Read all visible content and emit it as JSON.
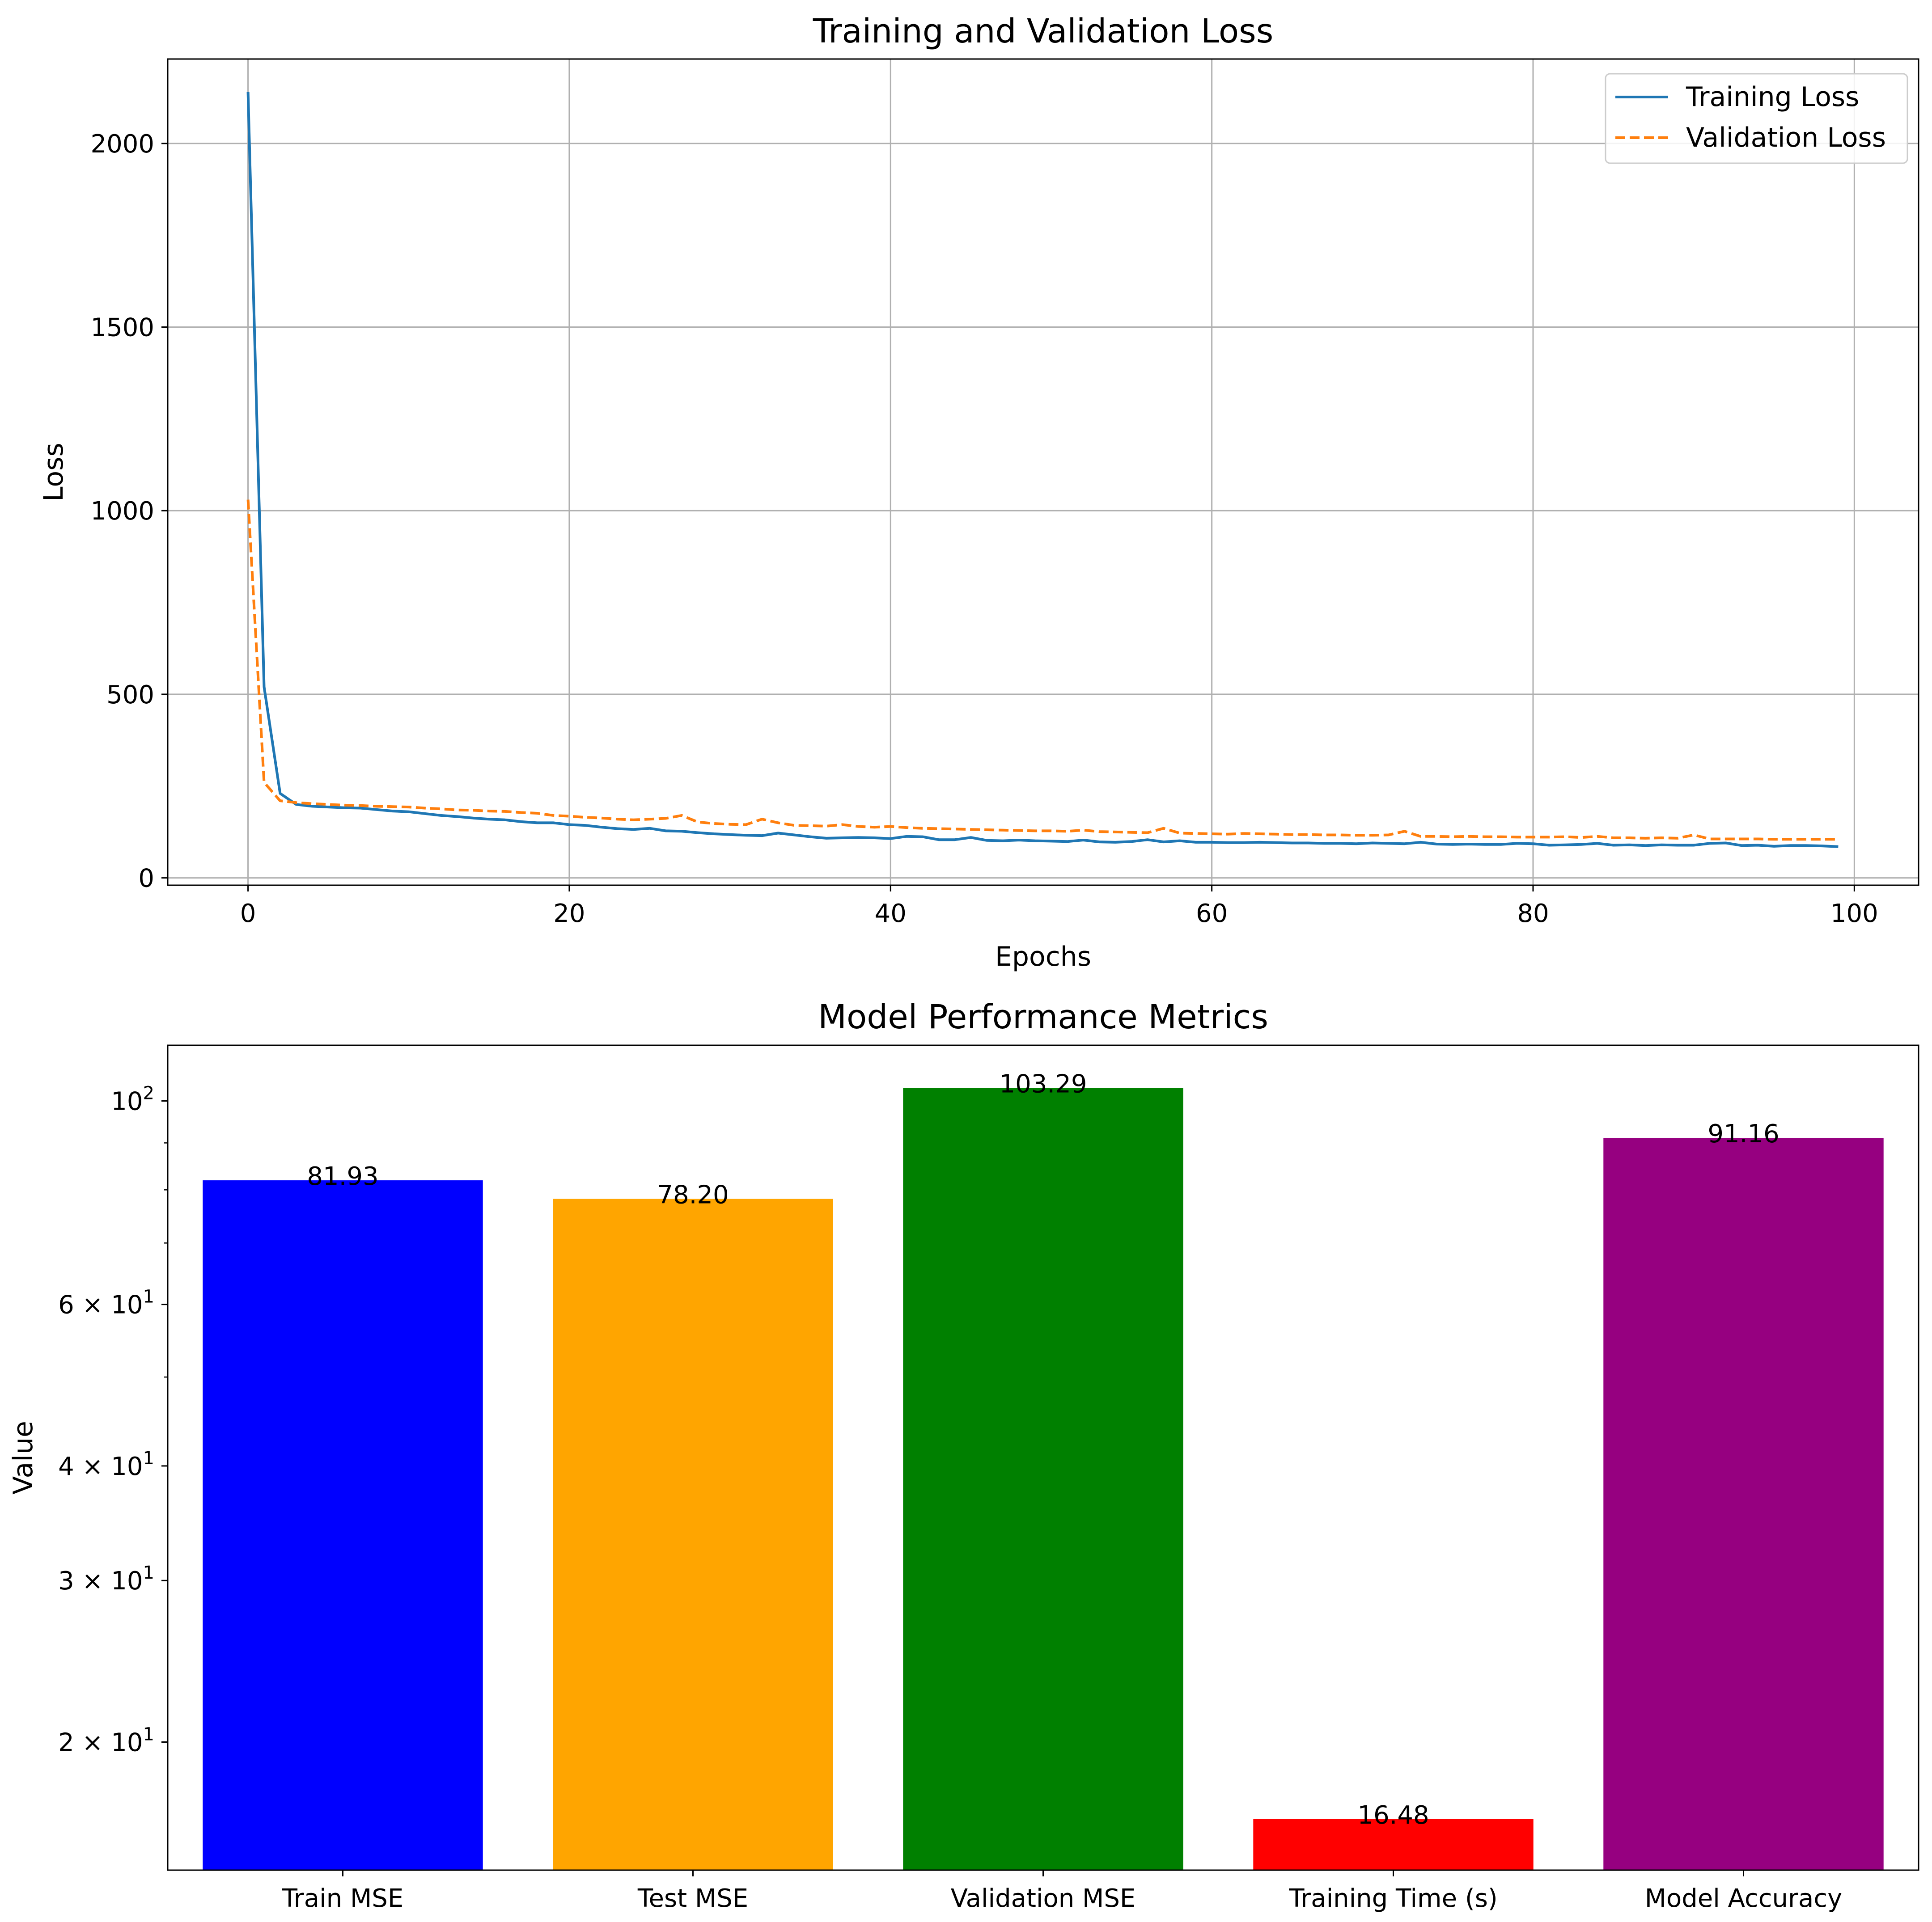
{
  "chart_data": [
    {
      "type": "line",
      "title": "Training and Validation Loss",
      "xlabel": "Epochs",
      "ylabel": "Loss",
      "xlim": [
        -5,
        104
      ],
      "ylim": [
        -20,
        2230
      ],
      "xticks": [
        0,
        20,
        40,
        60,
        80,
        100
      ],
      "yticks": [
        0,
        500,
        1000,
        1500,
        2000
      ],
      "grid": true,
      "legend_position": "top-right",
      "series": [
        {
          "name": "Training Loss",
          "color": "#1f77b4",
          "style": "solid",
          "x": [
            0,
            1,
            2,
            3,
            4,
            5,
            6,
            7,
            8,
            9,
            10,
            11,
            12,
            13,
            14,
            15,
            16,
            17,
            18,
            19,
            20,
            21,
            22,
            23,
            24,
            25,
            26,
            27,
            28,
            29,
            30,
            31,
            32,
            33,
            34,
            35,
            36,
            37,
            38,
            39,
            40,
            41,
            42,
            43,
            44,
            45,
            46,
            47,
            48,
            49,
            50,
            51,
            52,
            53,
            54,
            55,
            56,
            57,
            58,
            59,
            60,
            61,
            62,
            63,
            64,
            65,
            66,
            67,
            68,
            69,
            70,
            71,
            72,
            73,
            74,
            75,
            76,
            77,
            78,
            79,
            80,
            81,
            82,
            83,
            84,
            85,
            86,
            87,
            88,
            89,
            90,
            91,
            92,
            93,
            94,
            95,
            96,
            97,
            98,
            99
          ],
          "y": [
            2140,
            520,
            230,
            200,
            195,
            193,
            191,
            190,
            186,
            182,
            180,
            175,
            170,
            167,
            163,
            160,
            158,
            153,
            150,
            150,
            145,
            143,
            138,
            134,
            132,
            135,
            128,
            127,
            123,
            120,
            118,
            116,
            115,
            122,
            117,
            112,
            108,
            109,
            110,
            109,
            107,
            113,
            112,
            104,
            104,
            110,
            102,
            101,
            103,
            101,
            100,
            99,
            103,
            98,
            97,
            99,
            104,
            98,
            101,
            97,
            97,
            96,
            96,
            97,
            96,
            95,
            95,
            94,
            94,
            93,
            95,
            94,
            93,
            97,
            92,
            91,
            92,
            91,
            91,
            94,
            93,
            89,
            90,
            91,
            94,
            89,
            90,
            88,
            90,
            89,
            89,
            94,
            95,
            88,
            89,
            86,
            88,
            88,
            87,
            85
          ]
        },
        {
          "name": "Validation Loss",
          "color": "#ff7f0e",
          "style": "dashed",
          "x": [
            0,
            1,
            2,
            3,
            4,
            5,
            6,
            7,
            8,
            9,
            10,
            11,
            12,
            13,
            14,
            15,
            16,
            17,
            18,
            19,
            20,
            21,
            22,
            23,
            24,
            25,
            26,
            27,
            28,
            29,
            30,
            31,
            32,
            33,
            34,
            35,
            36,
            37,
            38,
            39,
            40,
            41,
            42,
            43,
            44,
            45,
            46,
            47,
            48,
            49,
            50,
            51,
            52,
            53,
            54,
            55,
            56,
            57,
            58,
            59,
            60,
            61,
            62,
            63,
            64,
            65,
            66,
            67,
            68,
            69,
            70,
            71,
            72,
            73,
            74,
            75,
            76,
            77,
            78,
            79,
            80,
            81,
            82,
            83,
            84,
            85,
            86,
            87,
            88,
            89,
            90,
            91,
            92,
            93,
            94,
            95,
            96,
            97,
            98,
            99
          ],
          "y": [
            1030,
            260,
            210,
            205,
            202,
            200,
            198,
            197,
            195,
            194,
            193,
            190,
            188,
            185,
            184,
            182,
            181,
            178,
            176,
            170,
            168,
            165,
            163,
            160,
            158,
            160,
            162,
            170,
            152,
            148,
            146,
            145,
            160,
            150,
            143,
            142,
            141,
            145,
            140,
            138,
            140,
            137,
            135,
            134,
            133,
            132,
            131,
            130,
            129,
            128,
            128,
            127,
            130,
            126,
            125,
            124,
            123,
            135,
            122,
            121,
            120,
            119,
            121,
            120,
            119,
            118,
            118,
            117,
            117,
            116,
            116,
            117,
            127,
            113,
            113,
            112,
            113,
            112,
            112,
            111,
            111,
            111,
            112,
            110,
            113,
            109,
            109,
            108,
            109,
            108,
            117,
            106,
            106,
            106,
            106,
            105,
            105,
            105,
            105,
            105
          ]
        }
      ]
    },
    {
      "type": "bar",
      "title": "Model Performance Metrics",
      "xlabel": "",
      "ylabel": "Value",
      "yscale": "log",
      "ylim": [
        14.5,
        115
      ],
      "grid": false,
      "categories": [
        "Train MSE",
        "Test MSE",
        "Validation MSE",
        "Training Time (s)",
        "Model Accuracy"
      ],
      "values": [
        81.93,
        78.2,
        103.29,
        16.48,
        91.16
      ],
      "value_labels": [
        "81.93",
        "78.20",
        "103.29",
        "16.48",
        "91.16"
      ],
      "colors": [
        "#0000ff",
        "#ffa500",
        "#008000",
        "#ff0000",
        "#960080"
      ],
      "yticks": [
        {
          "value": 100,
          "base": "10",
          "exp": "2"
        },
        {
          "value": 60,
          "base": "6 × 10",
          "exp": "1"
        },
        {
          "value": 40,
          "base": "4 × 10",
          "exp": "1"
        },
        {
          "value": 30,
          "base": "3 × 10",
          "exp": "1"
        },
        {
          "value": 20,
          "base": "2 × 10",
          "exp": "1"
        }
      ]
    }
  ]
}
